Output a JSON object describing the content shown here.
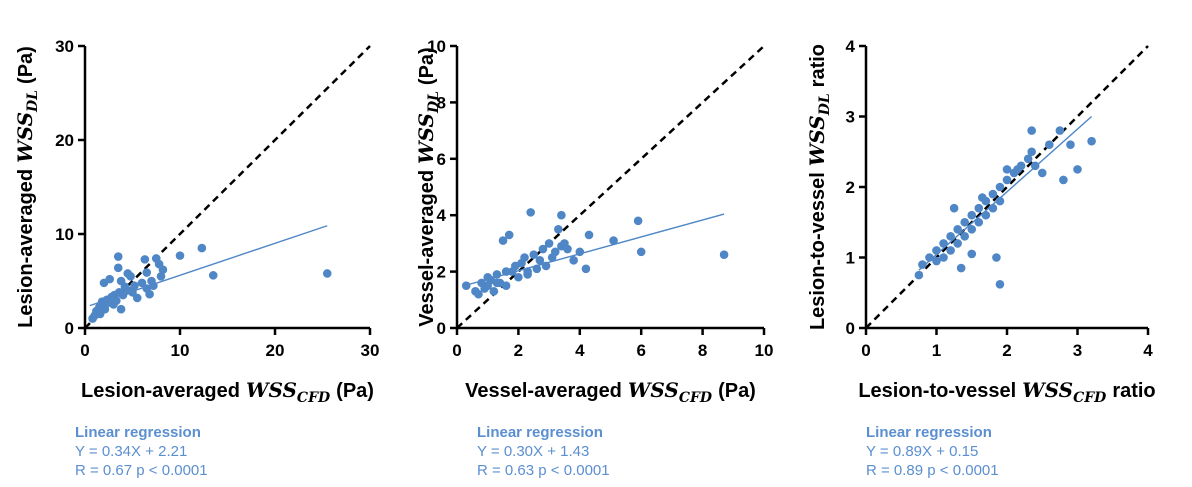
{
  "chart_data": [
    {
      "type": "scatter",
      "xlabel": {
        "prefix": "Lesion-averaged",
        "symbol": "WSS",
        "subscript": "CFD",
        "suffix": "(Pa)"
      },
      "ylabel": {
        "prefix": "Lesion-averaged",
        "symbol": "WSS",
        "subscript": "DL",
        "suffix": "(Pa)"
      },
      "annotations": [
        "Linear regression",
        "Y = 0.34X + 2.21",
        "R = 0.67 p < 0.0001"
      ],
      "xlim": [
        0,
        30
      ],
      "ylim": [
        0,
        30
      ],
      "xticks": [
        0,
        10,
        20,
        30
      ],
      "yticks": [
        0,
        10,
        20,
        30
      ],
      "color": "#4f86c6",
      "x": [
        0.8,
        1.0,
        1.2,
        1.5,
        1.6,
        1.8,
        2.0,
        2.1,
        2.3,
        2.5,
        2.6,
        2.8,
        3.0,
        3.1,
        3.3,
        3.5,
        3.6,
        3.8,
        4.0,
        4.2,
        4.5,
        4.8,
        5.0,
        5.2,
        5.5,
        6.0,
        6.3,
        6.5,
        6.8,
        7.0,
        7.2,
        7.5,
        7.8,
        8.0,
        8.2,
        3.5,
        2.0,
        3.8,
        4.5,
        6.5,
        10.0,
        12.3,
        13.5,
        25.5,
        3.2
      ],
      "values": [
        1.0,
        1.3,
        1.8,
        2.2,
        1.5,
        2.8,
        2.5,
        2.0,
        3.0,
        2.7,
        5.2,
        3.3,
        2.5,
        3.5,
        2.9,
        7.6,
        3.8,
        2.0,
        3.5,
        4.4,
        4.0,
        5.5,
        3.8,
        4.5,
        3.2,
        4.8,
        7.3,
        4.2,
        3.6,
        5.0,
        4.5,
        7.4,
        6.8,
        5.5,
        6.2,
        6.4,
        4.8,
        5.0,
        5.8,
        5.9,
        7.7,
        8.5,
        5.6,
        5.8,
        3.0
      ],
      "fit_line": {
        "x": [
          0.5,
          25.5
        ],
        "values": [
          2.38,
          10.88
        ],
        "color": "#4f86c6"
      },
      "reference_line": {
        "x": [
          0,
          30
        ],
        "values": [
          0,
          30
        ],
        "color": "#000000"
      }
    },
    {
      "type": "scatter",
      "xlabel": {
        "prefix": "Vessel-averaged",
        "symbol": "WSS",
        "subscript": "CFD",
        "suffix": "(Pa)"
      },
      "ylabel": {
        "prefix": "Vessel-averaged",
        "symbol": "WSS",
        "subscript": "DL",
        "suffix": "(Pa)"
      },
      "annotations": [
        "Linear regression",
        "Y = 0.30X + 1.43",
        "R = 0.63 p < 0.0001"
      ],
      "xlim": [
        0,
        10
      ],
      "ylim": [
        0,
        10
      ],
      "xticks": [
        0,
        2,
        4,
        6,
        8,
        10
      ],
      "yticks": [
        0,
        2,
        4,
        6,
        8,
        10
      ],
      "color": "#4f86c6",
      "x": [
        0.3,
        0.6,
        0.7,
        0.8,
        0.9,
        1.0,
        1.0,
        1.1,
        1.2,
        1.3,
        1.4,
        1.5,
        1.6,
        1.7,
        1.8,
        1.9,
        2.0,
        2.1,
        2.2,
        2.3,
        2.4,
        2.5,
        2.6,
        2.7,
        2.8,
        2.9,
        3.0,
        3.1,
        3.2,
        3.3,
        3.4,
        3.5,
        3.6,
        3.8,
        4.0,
        4.2,
        4.3,
        5.1,
        5.9,
        6.0,
        8.7,
        1.3,
        1.6,
        2.3,
        3.4
      ],
      "values": [
        1.5,
        1.3,
        1.2,
        1.6,
        1.4,
        1.5,
        1.8,
        1.7,
        1.3,
        1.9,
        1.6,
        3.1,
        1.5,
        3.3,
        2.0,
        2.2,
        1.8,
        2.3,
        2.5,
        2.0,
        4.1,
        2.6,
        2.1,
        2.4,
        2.8,
        2.2,
        3.0,
        2.5,
        2.7,
        3.5,
        2.9,
        3.0,
        2.8,
        2.4,
        2.7,
        2.1,
        3.3,
        3.1,
        3.8,
        2.7,
        2.6,
        1.6,
        2.0,
        1.9,
        4.0
      ],
      "fit_line": {
        "x": [
          0.3,
          8.7
        ],
        "values": [
          1.52,
          4.04
        ],
        "color": "#4f86c6"
      },
      "reference_line": {
        "x": [
          0,
          10
        ],
        "values": [
          0,
          10
        ],
        "color": "#000000"
      }
    },
    {
      "type": "scatter",
      "xlabel": {
        "prefix": "Lesion-to-vessel",
        "symbol": "WSS",
        "subscript": "CFD",
        "suffix": "ratio"
      },
      "ylabel": {
        "prefix": "Lesion-to-vessel",
        "symbol": "WSS",
        "subscript": "DL",
        "suffix": "ratio"
      },
      "annotations": [
        "Linear regression",
        "Y = 0.89X + 0.15",
        "R = 0.89 p < 0.0001"
      ],
      "xlim": [
        0,
        4
      ],
      "ylim": [
        0,
        4
      ],
      "xticks": [
        0,
        1,
        2,
        3,
        4
      ],
      "yticks": [
        0,
        1,
        2,
        3,
        4
      ],
      "color": "#4f86c6",
      "x": [
        0.75,
        0.8,
        0.9,
        1.0,
        1.0,
        1.1,
        1.1,
        1.2,
        1.2,
        1.3,
        1.3,
        1.4,
        1.4,
        1.5,
        1.5,
        1.6,
        1.6,
        1.7,
        1.7,
        1.8,
        1.8,
        1.9,
        1.9,
        2.0,
        2.0,
        2.1,
        2.2,
        2.3,
        2.35,
        2.4,
        2.5,
        2.6,
        2.75,
        2.8,
        2.9,
        3.0,
        3.2,
        1.9,
        1.85,
        1.35,
        1.5,
        2.35,
        1.25,
        2.15,
        1.65
      ],
      "values": [
        0.75,
        0.9,
        1.0,
        0.95,
        1.1,
        1.2,
        1.0,
        1.3,
        1.1,
        1.4,
        1.2,
        1.5,
        1.3,
        1.6,
        1.4,
        1.7,
        1.5,
        1.8,
        1.6,
        1.9,
        1.7,
        2.0,
        1.8,
        2.1,
        2.25,
        2.2,
        2.3,
        2.4,
        2.8,
        2.3,
        2.2,
        2.6,
        2.8,
        2.1,
        2.6,
        2.25,
        2.65,
        0.62,
        1.0,
        0.85,
        1.05,
        2.5,
        1.7,
        2.25,
        1.85
      ],
      "fit_line": {
        "x": [
          0.75,
          3.2
        ],
        "values": [
          0.82,
          3.0
        ],
        "color": "#4f86c6"
      },
      "reference_line": {
        "x": [
          0,
          4
        ],
        "values": [
          0,
          4
        ],
        "color": "#000000"
      }
    }
  ]
}
